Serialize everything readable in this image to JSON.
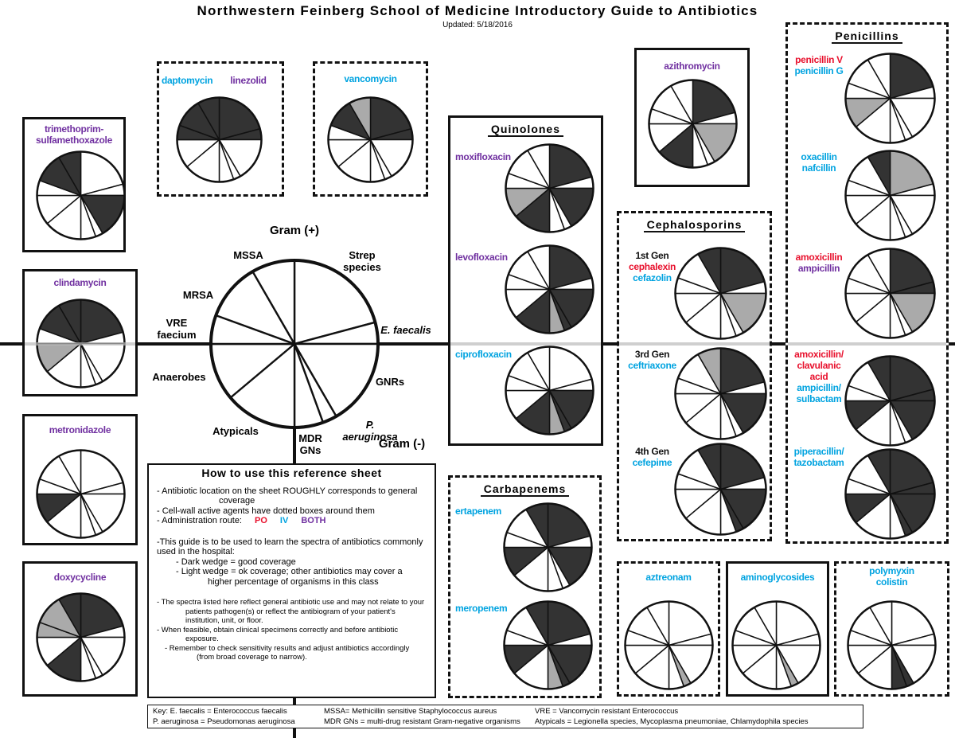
{
  "header": {
    "title": "Northwestern Feinberg School of Medicine Introductory Guide to Antibiotics",
    "updated": "Updated: 5/18/2016"
  },
  "routes": [
    {
      "label": "PO",
      "color": "#e8112d"
    },
    {
      "label": "IV",
      "color": "#00a3e0"
    },
    {
      "label": "BOTH",
      "color": "#7030a0"
    }
  ],
  "reference": {
    "gram_positive": "Gram (+)",
    "gram_negative": "Gram (-)",
    "segments": [
      "Strep species",
      "E. faecalis",
      "GNRs",
      "P. aeruginosa",
      "MDR GNs",
      "Atypicals",
      "Anaerobes",
      "VRE faecium",
      "MRSA",
      "MSSA"
    ]
  },
  "groups": [
    {
      "drugs": [
        {
          "names": [
            {
              "text": "trimethoprim-sulfamethoxazole",
              "route": "BOTH"
            }
          ],
          "coverage": "WWDWWWWWDD"
        }
      ]
    },
    {
      "drugs": [
        {
          "names": [
            {
              "text": "daptomycin",
              "route": "IV"
            },
            {
              "text": "linezolid",
              "route": "BOTH"
            }
          ],
          "coverage": "DDWWWWWDDD"
        }
      ]
    },
    {
      "drugs": [
        {
          "names": [
            {
              "text": "vancomycin",
              "route": "IV"
            }
          ],
          "coverage": "DDWWWWWWDL"
        }
      ]
    },
    {
      "drugs": [
        {
          "names": [
            {
              "text": "clindamycin",
              "route": "BOTH"
            }
          ],
          "coverage": "DWWWWWLWDD"
        }
      ]
    },
    {
      "drugs": [
        {
          "names": [
            {
              "text": "metronidazole",
              "route": "BOTH"
            }
          ],
          "coverage": "WWWWWWDWWW"
        }
      ]
    },
    {
      "drugs": [
        {
          "names": [
            {
              "text": "doxycycline",
              "route": "BOTH"
            }
          ],
          "coverage": "DWWWWDWLLD"
        }
      ]
    },
    {
      "title": "Quinolones",
      "drugs": [
        {
          "names": [
            {
              "text": "moxifloxacin",
              "route": "BOTH"
            }
          ],
          "coverage": "DWDWWDLWWW"
        },
        {
          "names": [
            {
              "text": "levofloxacin",
              "route": "BOTH"
            }
          ],
          "coverage": "DWDDLDWWWW"
        },
        {
          "names": [
            {
              "text": "ciprofloxacin",
              "route": "IV"
            }
          ],
          "coverage": "WWDDLDWWWW"
        }
      ]
    },
    {
      "title": "Carbapenems",
      "drugs": [
        {
          "names": [
            {
              "text": "ertapenem",
              "route": "IV"
            }
          ],
          "coverage": "DWDWWWDWWD"
        },
        {
          "names": [
            {
              "text": "meropenem",
              "route": "IV"
            }
          ],
          "coverage": "DWDDLWDWWD"
        }
      ]
    },
    {
      "drugs": [
        {
          "names": [
            {
              "text": "azithromycin",
              "route": "BOTH"
            }
          ],
          "coverage": "DWLWWDWWWW"
        }
      ]
    },
    {
      "title": "Cephalosporins",
      "drugs": [
        {
          "tag": "1st Gen",
          "names": [
            {
              "text": "cephalexin",
              "route": "PO"
            },
            {
              "text": "cefazolin",
              "route": "IV"
            }
          ],
          "coverage": "DWLWWWWWWD"
        },
        {
          "tag": "3rd Gen",
          "names": [
            {
              "text": "ceftriaxone",
              "route": "IV"
            }
          ],
          "coverage": "DWDWWWWWWL"
        },
        {
          "tag": "4th Gen",
          "names": [
            {
              "text": "cefepime",
              "route": "IV"
            }
          ],
          "coverage": "DWDDWWWWWD"
        }
      ]
    },
    {
      "title": "Penicillins",
      "drugs": [
        {
          "names": [
            {
              "text": "penicillin V",
              "route": "PO"
            },
            {
              "text": "penicillin G",
              "route": "IV"
            }
          ],
          "coverage": "DWWWWWLWWW"
        },
        {
          "names": [
            {
              "text": "oxacillin",
              "route": "IV"
            },
            {
              "text": "nafcillin",
              "route": "IV"
            }
          ],
          "coverage": "LWWWWWWWWD"
        },
        {
          "names": [
            {
              "text": "amoxicillin",
              "route": "PO"
            },
            {
              "text": "ampicillin",
              "route": "BOTH"
            }
          ],
          "coverage": "DDLWWWWWWW"
        },
        {
          "names": [
            {
              "text": "amoxicillin/ clavulanic acid",
              "route": "PO"
            },
            {
              "text": "ampicillin/ sulbactam",
              "route": "IV"
            }
          ],
          "coverage": "DDDWWWDWWD"
        },
        {
          "names": [
            {
              "text": "piperacillin/ tazobactam",
              "route": "IV"
            }
          ],
          "coverage": "DDDDWWDWWD"
        }
      ]
    },
    {
      "drugs": [
        {
          "names": [
            {
              "text": "aztreonam",
              "route": "IV"
            }
          ],
          "coverage": "WWWLWWWWWW"
        }
      ]
    },
    {
      "drugs": [
        {
          "names": [
            {
              "text": "aminoglycosides",
              "route": "IV"
            }
          ],
          "coverage": "WWWLWWWWWW"
        }
      ]
    },
    {
      "drugs": [
        {
          "names": [
            {
              "text": "polymyxin",
              "route": "IV"
            },
            {
              "text": "colistin",
              "route": "IV"
            }
          ],
          "coverage": "WWWDDWWWWW"
        }
      ]
    }
  ],
  "howto": {
    "title": "How to use this reference sheet",
    "lines": [
      "- Antibiotic location on the sheet ROUGHLY corresponds to general coverage",
      "- Cell-wall active agents have dotted boxes around them",
      "- Administration route:",
      "-This guide is to be used to learn the spectra of antibiotics commonly used in the hospital:",
      "- Dark wedge = good coverage",
      "- Light wedge = ok coverage; other antibiotics may cover a higher percentage of organisms in this class",
      "- The spectra listed here reflect general antibiotic use and may not relate to your patients pathogen(s) or reflect the antibiogram of your patient's institution, unit, or floor.",
      "- When feasible, obtain clinical specimens correctly and before antibiotic exposure.",
      "- Remember to check sensitivity results and adjust antibiotics accordingly (from broad coverage to narrow)."
    ]
  },
  "key": [
    "Key:  E. faecalis = Enterococcus faecalis",
    "MSSA= Methicillin sensitive Staphylococcus aureus",
    "VRE = Vancomycin resistant Enterococcus",
    "P. aeruginosa = Pseudomonas aeruginosa",
    "MDR GNs = multi-drug resistant Gram-negative organisms",
    "Atypicals = Legionella species, Mycoplasma pneumoniae, Chlamydophila species"
  ]
}
